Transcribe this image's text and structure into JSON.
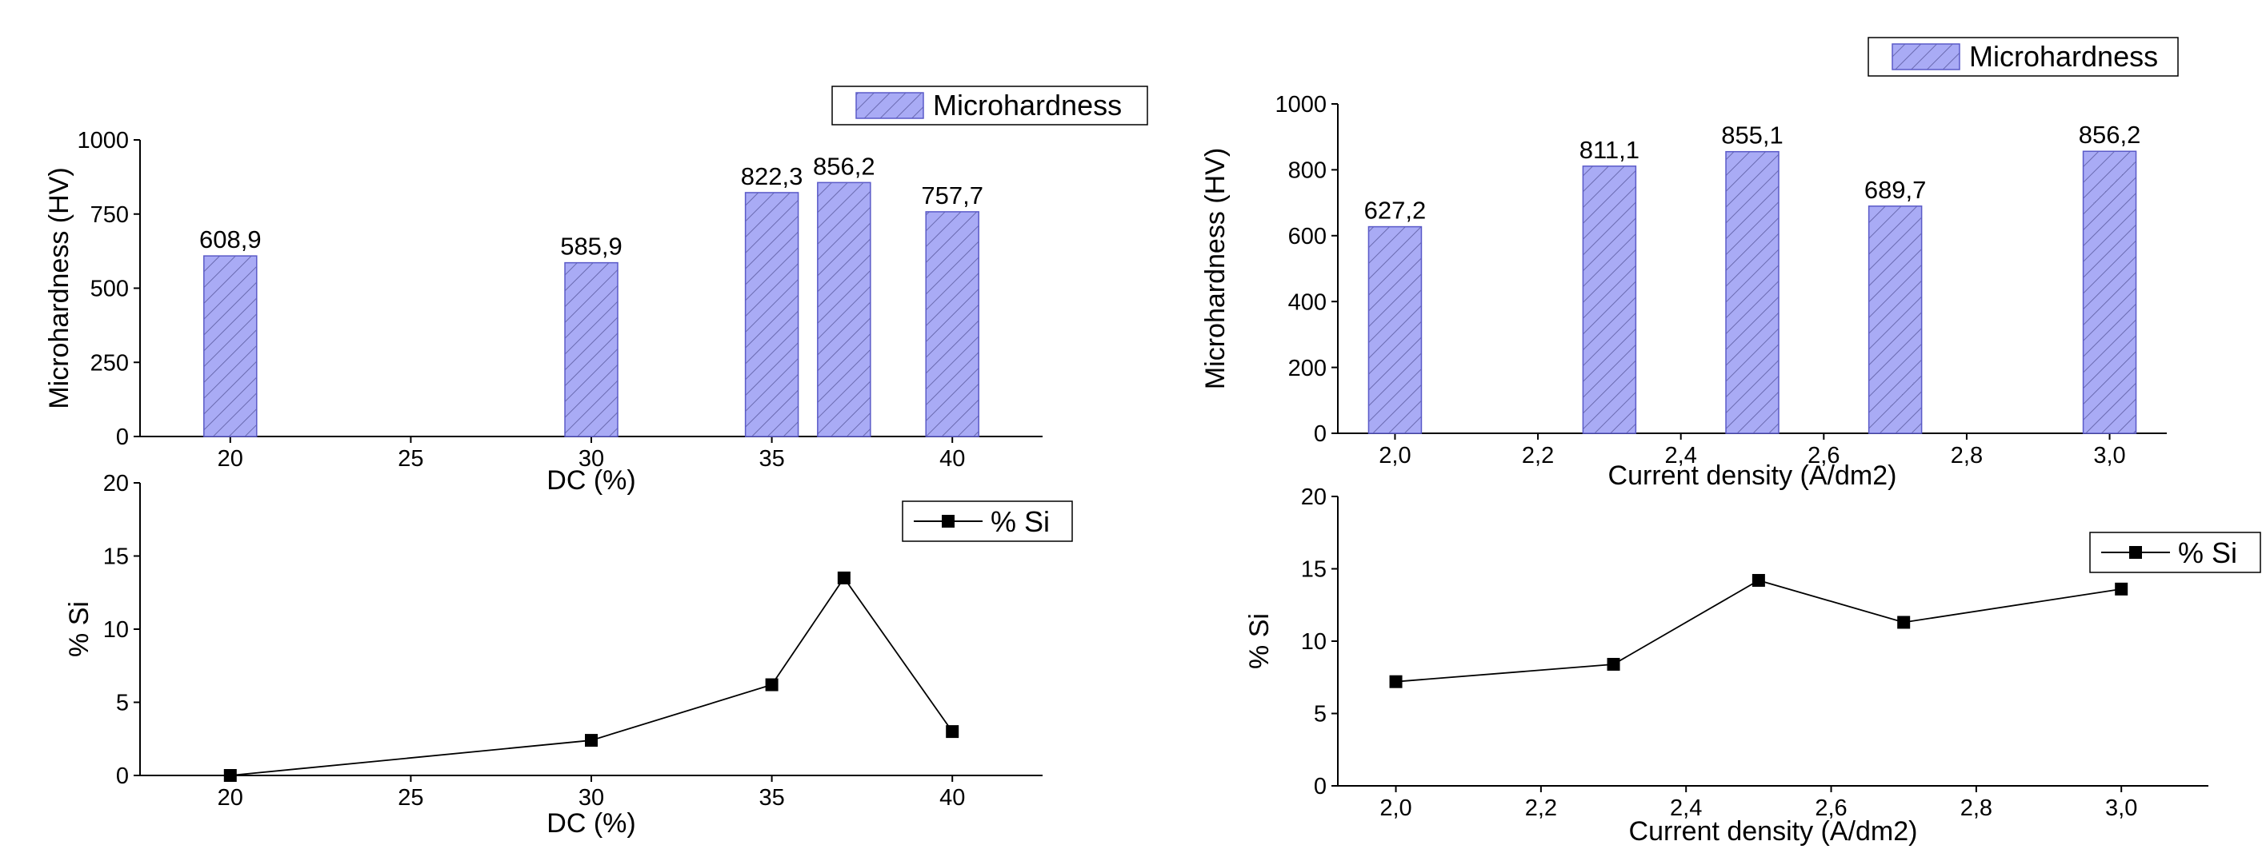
{
  "style": {
    "bar_fill": "#a9abf5",
    "bar_stroke": "#5a5ac8",
    "hatch": "#6a6ab0",
    "line": "#000000",
    "marker": "#000000"
  },
  "chart_data": [
    {
      "id": "dc-hardness",
      "type": "bar",
      "x": [
        20,
        30,
        35,
        37,
        40
      ],
      "values": [
        608.9,
        585.9,
        822.3,
        856.2,
        757.7
      ],
      "labels": [
        "608,9",
        "585,9",
        "822,3",
        "856,2",
        "757,7"
      ],
      "xlim": [
        17.5,
        42.5
      ],
      "xticks": [
        20,
        25,
        30,
        35,
        40
      ],
      "xticklabels": [
        "20",
        "25",
        "30",
        "35",
        "40"
      ],
      "ylim": [
        0,
        1000
      ],
      "yticks": [
        0,
        250,
        500,
        750,
        1000
      ],
      "yticklabels": [
        "0",
        "250",
        "500",
        "750",
        "1000"
      ],
      "xlabel": "DC (%)",
      "ylabel": "Microhardness (HV)",
      "legend": "Microhardness",
      "legend_position": "top-right"
    },
    {
      "id": "dc-si",
      "type": "line",
      "x": [
        20,
        30,
        35,
        37,
        40
      ],
      "values": [
        0,
        2.4,
        6.2,
        13.5,
        3.0
      ],
      "xlim": [
        17.5,
        42.5
      ],
      "xticks": [
        20,
        25,
        30,
        35,
        40
      ],
      "xticklabels": [
        "20",
        "25",
        "30",
        "35",
        "40"
      ],
      "ylim": [
        0,
        20
      ],
      "yticks": [
        0,
        5,
        10,
        15,
        20
      ],
      "yticklabels": [
        "0",
        "5",
        "10",
        "15",
        "20"
      ],
      "xlabel": "DC (%)",
      "ylabel": "% Si",
      "legend": "% Si",
      "legend_position": "top-right"
    },
    {
      "id": "cd-hardness",
      "type": "bar",
      "x": [
        2.0,
        2.3,
        2.5,
        2.7,
        3.0
      ],
      "values": [
        627.2,
        811.1,
        855.1,
        689.7,
        856.2
      ],
      "labels": [
        "627,2",
        "811,1",
        "855,1",
        "689,7",
        "856,2"
      ],
      "xlim": [
        1.92,
        3.08
      ],
      "xticks": [
        2.0,
        2.2,
        2.4,
        2.6,
        2.8,
        3.0
      ],
      "xticklabels": [
        "2,0",
        "2,2",
        "2,4",
        "2,6",
        "2,8",
        "3,0"
      ],
      "ylim": [
        0,
        1000
      ],
      "yticks": [
        0,
        200,
        400,
        600,
        800,
        1000
      ],
      "yticklabels": [
        "0",
        "200",
        "400",
        "600",
        "800",
        "1000"
      ],
      "xlabel": "Current density (A/dm2)",
      "ylabel": "Microhardness (HV)",
      "legend": "Microhardness",
      "legend_position": "top-right"
    },
    {
      "id": "cd-si",
      "type": "line",
      "x": [
        2.0,
        2.3,
        2.5,
        2.7,
        3.0
      ],
      "values": [
        7.2,
        8.4,
        14.2,
        11.3,
        13.6
      ],
      "xlim": [
        1.92,
        3.12
      ],
      "xticks": [
        2.0,
        2.2,
        2.4,
        2.6,
        2.8,
        3.0
      ],
      "xticklabels": [
        "2,0",
        "2,2",
        "2,4",
        "2,6",
        "2,8",
        "3,0"
      ],
      "ylim": [
        0,
        20
      ],
      "yticks": [
        0,
        5,
        10,
        15,
        20
      ],
      "yticklabels": [
        "0",
        "5",
        "10",
        "15",
        "20"
      ],
      "xlabel": "Current density (A/dm2)",
      "ylabel": "% Si",
      "legend": "% Si",
      "legend_position": "top-right"
    }
  ]
}
